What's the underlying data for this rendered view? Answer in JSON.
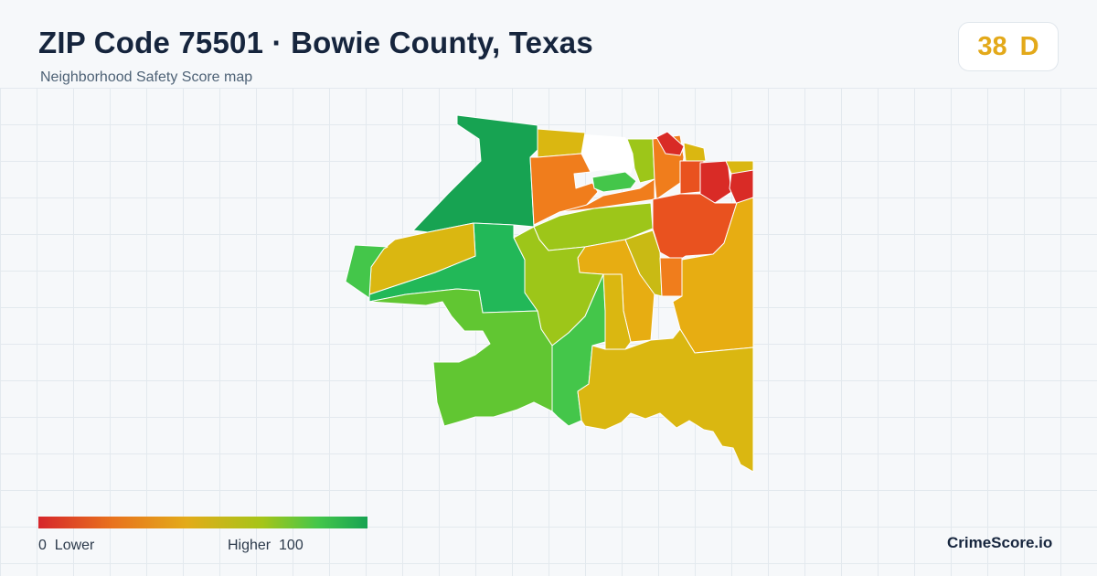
{
  "header": {
    "title": "ZIP Code 75501 · Bowie County, Texas",
    "subtitle": "Neighborhood Safety Score map"
  },
  "score": {
    "value": "38",
    "grade": "D",
    "color": "#e3a91a"
  },
  "legend": {
    "min_label": "0  Lower",
    "max_label": "Higher  100",
    "scale_colors": [
      "#d6262b",
      "#e8711e",
      "#e3ab1a",
      "#a5c519",
      "#44c64a",
      "#17a352"
    ]
  },
  "brand": "CrimeScore.io",
  "map": {
    "region_colors": {
      "very_low": "#d92b26",
      "low": "#e9521f",
      "low_mid": "#f07d1c",
      "mid": "#e7ad12",
      "mid_high": "#dab711",
      "high": "#9dc619",
      "higher": "#61c632",
      "very_high": "#22b858",
      "top": "#17a352"
    }
  }
}
